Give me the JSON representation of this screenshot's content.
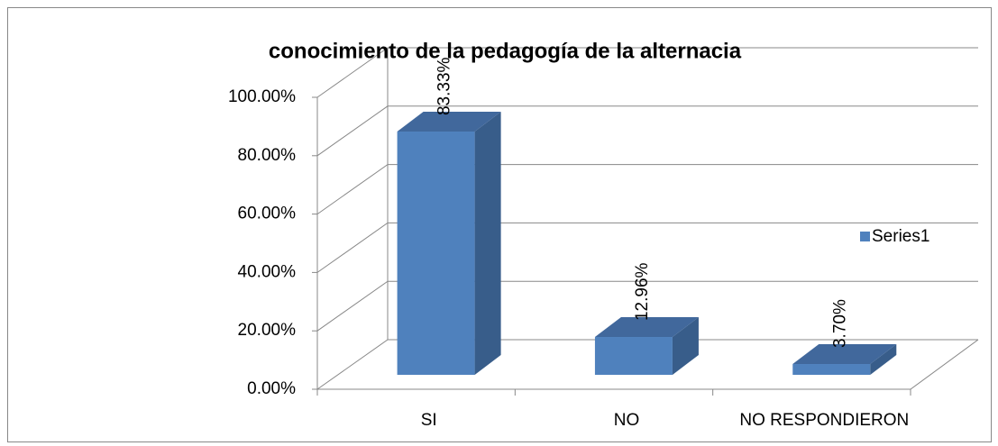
{
  "chart_data": {
    "type": "bar",
    "title": "conocimiento de la pedagogía de la alternacia",
    "categories": [
      "SI",
      "NO",
      "NO RESPONDIERON"
    ],
    "series": [
      {
        "name": "Series1",
        "color": "#4f81bd",
        "values": [
          83.33,
          12.96,
          3.7
        ],
        "value_labels": [
          "83.33%",
          "12.96%",
          "3.70%"
        ]
      }
    ],
    "ylim": [
      0,
      100
    ],
    "yticks": [
      {
        "value": 0,
        "label": "0.00%"
      },
      {
        "value": 20,
        "label": "20.00%"
      },
      {
        "value": 40,
        "label": "40.00%"
      },
      {
        "value": 60,
        "label": "60.00%"
      },
      {
        "value": 80,
        "label": "80.00%"
      },
      {
        "value": 100,
        "label": "100.00%"
      }
    ],
    "grid": true,
    "legend": "right"
  }
}
